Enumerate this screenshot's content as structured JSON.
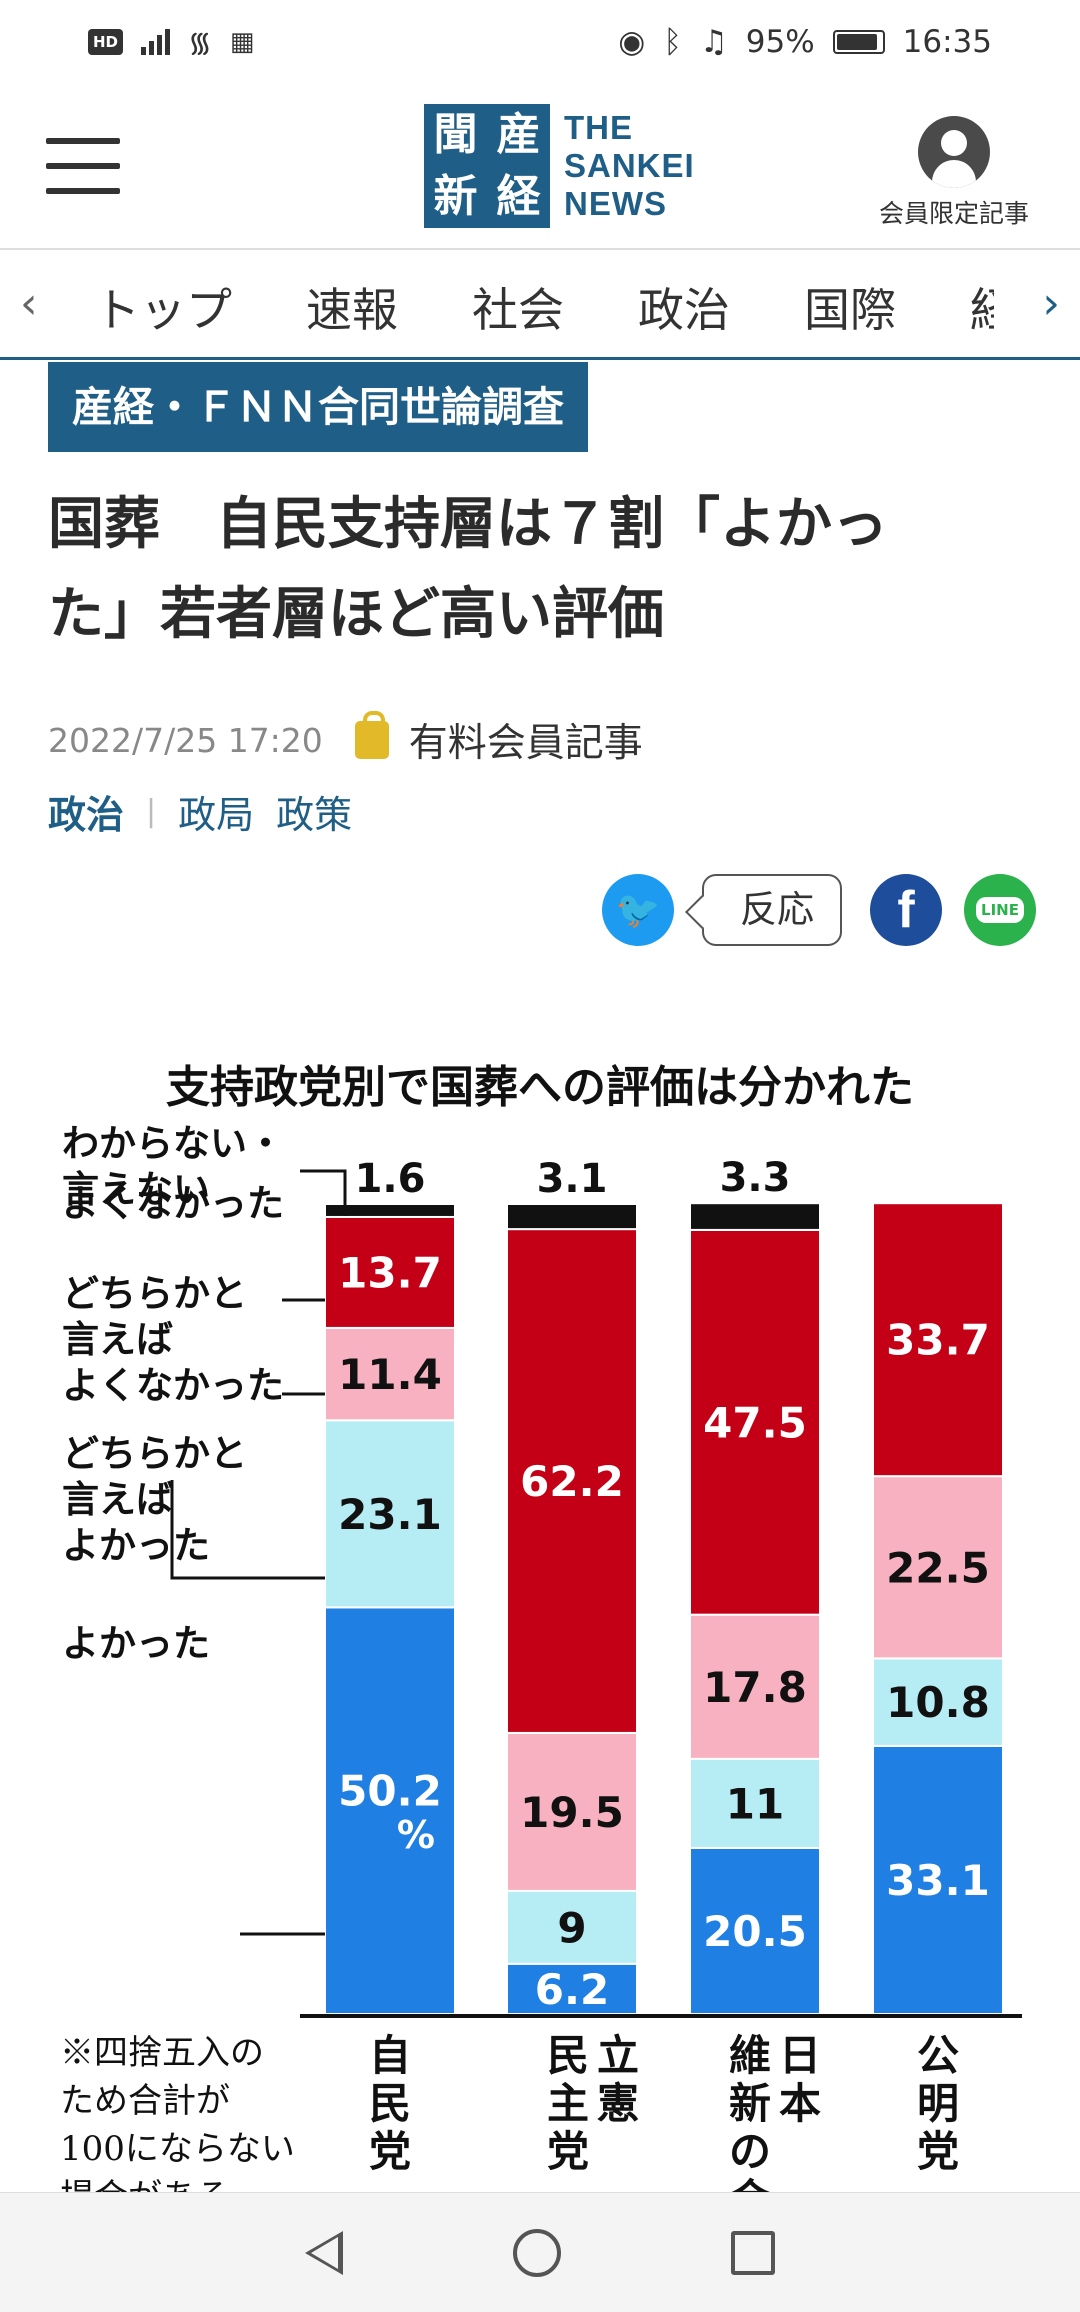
{
  "status_bar": {
    "hd": "HD",
    "battery": "95%",
    "time": "16:35"
  },
  "header": {
    "logo_kanji": [
      "産",
      "経",
      "新",
      "聞"
    ],
    "logo_text": [
      "THE",
      "SANKEI",
      "NEWS"
    ],
    "member_label": "会員限定記事"
  },
  "nav": {
    "items": [
      "トップ",
      "速報",
      "社会",
      "政治",
      "国際",
      "経"
    ]
  },
  "article": {
    "tag": "産経・ＦＮＮ合同世論調査",
    "title_line1": "国葬　自民支持層は７割「よかっ",
    "title_line2": "た」若者層ほど高い評価",
    "date": "2022/7/25 17:20",
    "paid_label": "有料会員記事",
    "category_main": "政治",
    "category_sub1": "政局",
    "category_sub2": "政策",
    "share_reaction": "反応",
    "share_line": "LINE"
  },
  "chart_data": {
    "type": "bar",
    "stacked": true,
    "title": "支持政党別で国葬への評価は分かれた",
    "categories": [
      "自民党",
      "立憲民主党",
      "日本維新の会",
      "公明党"
    ],
    "series": [
      {
        "name": "よかった",
        "color": "#1f7fe3",
        "values": [
          50.2,
          6.2,
          20.5,
          33.1
        ]
      },
      {
        "name": "どちらかと言えばよかった",
        "color": "#b6ecf4",
        "values": [
          23.1,
          9,
          11,
          10.8
        ]
      },
      {
        "name": "どちらかと言えばよくなかった",
        "color": "#f8b1c1",
        "values": [
          11.4,
          19.5,
          17.8,
          22.5
        ]
      },
      {
        "name": "よくなかった",
        "color": "#c40016",
        "values": [
          13.7,
          62.2,
          47.5,
          33.7
        ]
      },
      {
        "name": "わからない・言えない",
        "color": "#111111",
        "values": [
          1.6,
          3.1,
          3.3,
          null
        ]
      }
    ],
    "legend_lines": [
      [
        "わからない・",
        "言えない"
      ],
      [
        "よくなかった"
      ],
      [
        "どちらかと",
        "言えば",
        "よくなかった"
      ],
      [
        "どちらかと",
        "言えば",
        "よかった"
      ],
      [
        "よかった"
      ]
    ],
    "bar_labels": [
      [
        "自",
        "民",
        "党"
      ],
      [
        "立",
        "憲",
        "民",
        "主",
        "党"
      ],
      [
        "日",
        "本",
        "維",
        "新",
        "の",
        "会"
      ],
      [
        "公",
        "明",
        "党"
      ]
    ],
    "percent_sign": "%",
    "note": [
      "※四捨五入の",
      "ため合計が",
      "100にならない",
      "場合がある"
    ]
  }
}
